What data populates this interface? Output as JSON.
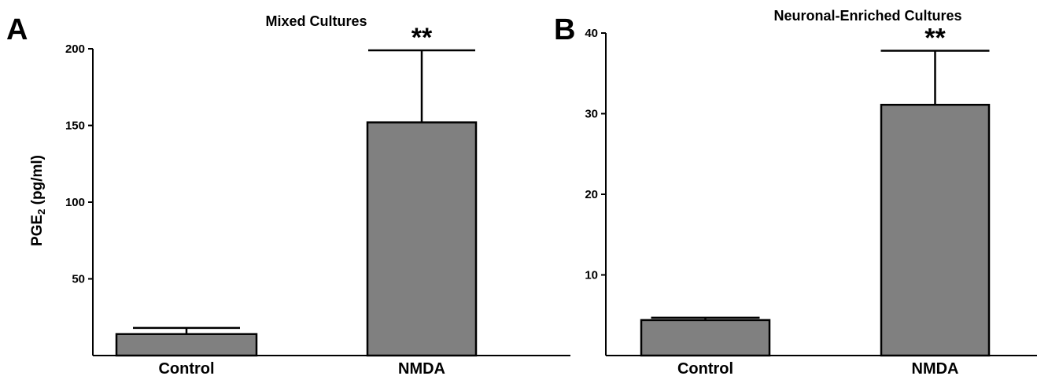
{
  "colors": {
    "bar_fill": "#808080",
    "axis": "#000000",
    "background": "#ffffff"
  },
  "panels": [
    {
      "letter": "A"
    },
    {
      "letter": "B"
    }
  ],
  "y_title": {
    "main": "PGE",
    "subscript": "2",
    "suffix": " (pg/ml)"
  },
  "chart_data": [
    {
      "type": "bar",
      "title": "Mixed Cultures",
      "categories": [
        "Control",
        "NMDA"
      ],
      "values": [
        14,
        152
      ],
      "error_upper": [
        18,
        199
      ],
      "significance": [
        "",
        "**"
      ],
      "ylim": [
        0,
        200
      ],
      "yticks": [
        50,
        100,
        150,
        200
      ],
      "ytick_labels": [
        "50",
        "100",
        "150",
        "200"
      ],
      "ylabel": "PGE2 (pg/ml)",
      "xlabel": ""
    },
    {
      "type": "bar",
      "title": "Neuronal-Enriched Cultures",
      "categories": [
        "Control",
        "NMDA"
      ],
      "values": [
        4.4,
        31.1
      ],
      "error_upper": [
        4.7,
        37.8
      ],
      "significance": [
        "",
        "**"
      ],
      "ylim": [
        0,
        40
      ],
      "yticks": [
        10,
        20,
        30,
        40
      ],
      "ytick_labels": [
        "10",
        "20",
        "30",
        "40"
      ],
      "ylabel": "",
      "xlabel": ""
    }
  ]
}
